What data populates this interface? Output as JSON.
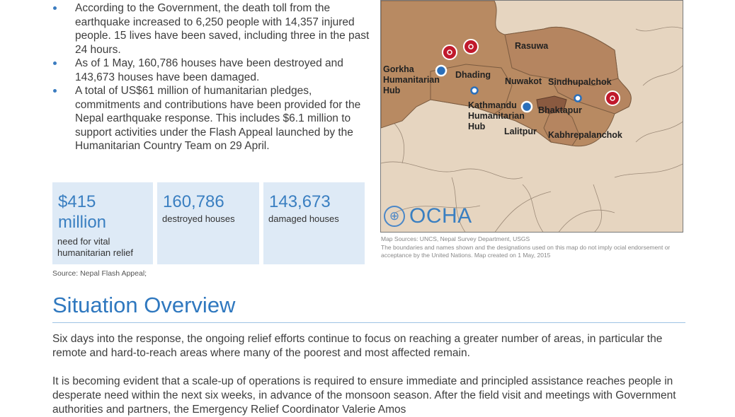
{
  "bullets": [
    "According to the Government, the death toll from the earthquake increased to 6,250 people with 14,357 injured people. 15 lives have been saved, including three in the past 24 hours.",
    "As of 1 May, 160,786 houses have been destroyed and 143,673 houses have been damaged.",
    "A total of US$61 million of humanitarian pledges, commitments and contributions have been provided for the Nepal earthquake response. This includes $6.1 million to support activities under the Flash Appeal launched by the Humanitarian Country Team on 29 April."
  ],
  "stats": [
    {
      "value": "$415 million",
      "label": "need for vital humanitarian relief"
    },
    {
      "value": "160,786",
      "label": "destroyed houses"
    },
    {
      "value": "143,673",
      "label": "damaged houses"
    }
  ],
  "source": "Source: Nepal Flash Appeal;",
  "map": {
    "labels": {
      "rasuwa": "Rasuwa",
      "gorkha_hub": "Gorkha Humanitarian Hub",
      "dhading": "Dhading",
      "nuwakot": "Nuwakot",
      "sindhupalchok": "Sindhupalchok",
      "kathmandu_hub": "Kathmandu Humanitarian Hub",
      "bhaktapur": "Bhaktapur",
      "lalitpur": "Lalitpur",
      "kabhrepalanchok": "Kabhrepalanchok"
    },
    "logo_text": "OCHA",
    "colors": {
      "affected": "#b88a62",
      "background": "#e6d5c0",
      "kathmandu": "#8a5a40",
      "marker_red": "#c0192c",
      "hub_blue": "#2a6fba"
    },
    "caption_line1": "Map Sources: UNCS, Nepal Survey Department, USGS",
    "caption_line2": "The boundaries and names shown and the designations used on this map do not imply o­cial endorsement or acceptance by the United Nations. Map created on 1 May, 2015"
  },
  "section_title": "Situation Overview",
  "paragraphs": [
    "Six days into the response, the ongoing relief efforts continue to focus on reaching a greater number of areas, in particular the remote and hard-to-reach areas where many of the poorest and most affected remain.",
    "It is becoming evident that a scale-up of operations is required to ensure immediate and principled assistance reaches people in desperate need within the next six weeks, in advance of the monsoon season. After the field visit and meetings with Government authorities and partners, the Emergency Relief Coordinator Valerie Amos"
  ]
}
